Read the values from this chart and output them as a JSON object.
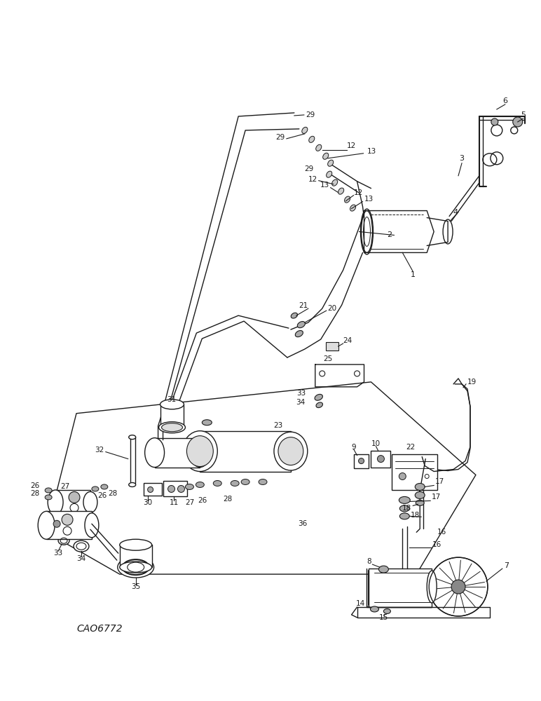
{
  "background_color": "#ffffff",
  "line_color": "#1a1a1a",
  "watermark": "CAO6772",
  "fig_width": 7.72,
  "fig_height": 10.0,
  "dpi": 100
}
